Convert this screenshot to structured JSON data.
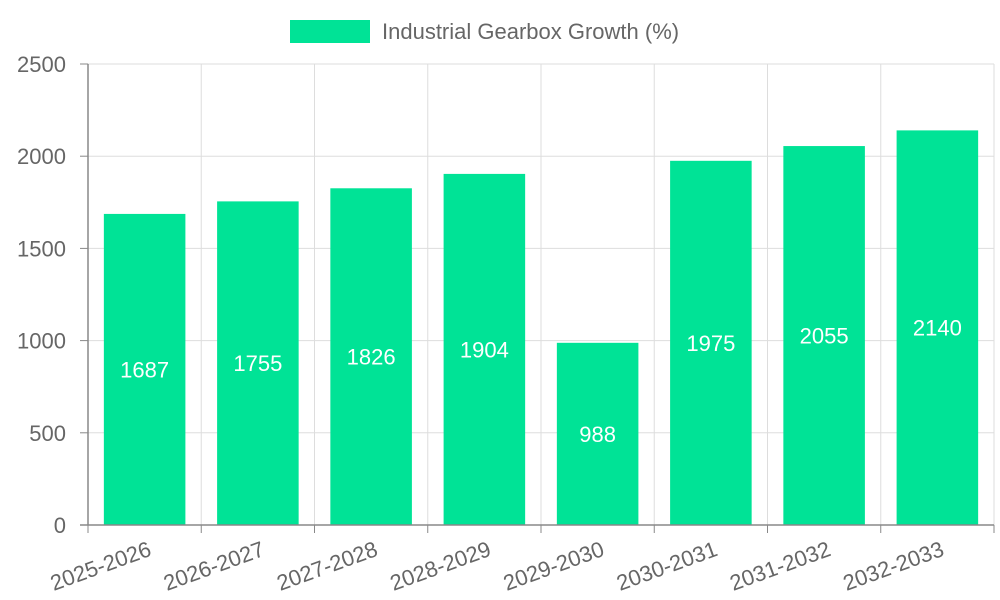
{
  "chart_data": {
    "type": "bar",
    "title": "",
    "xlabel": "",
    "ylabel": "",
    "categories": [
      "2025-2026",
      "2026-2027",
      "2027-2028",
      "2028-2029",
      "2029-2030",
      "2030-2031",
      "2031-2032",
      "2032-2033"
    ],
    "series": [
      {
        "name": "Industrial Gearbox Growth (%)",
        "values": [
          1687,
          1755,
          1826,
          1904,
          988,
          1975,
          2055,
          2140
        ],
        "color": "#00e396"
      }
    ],
    "ylim": [
      0,
      2500
    ],
    "yticks": [
      0,
      500,
      1000,
      1500,
      2000,
      2500
    ],
    "grid": true,
    "legend_position": "top-center",
    "data_labels": true,
    "colors": {
      "bar": "#00e396",
      "grid": "#dddddd",
      "axis": "#888888",
      "tick_text": "#666666",
      "data_label": "#ffffff"
    }
  }
}
